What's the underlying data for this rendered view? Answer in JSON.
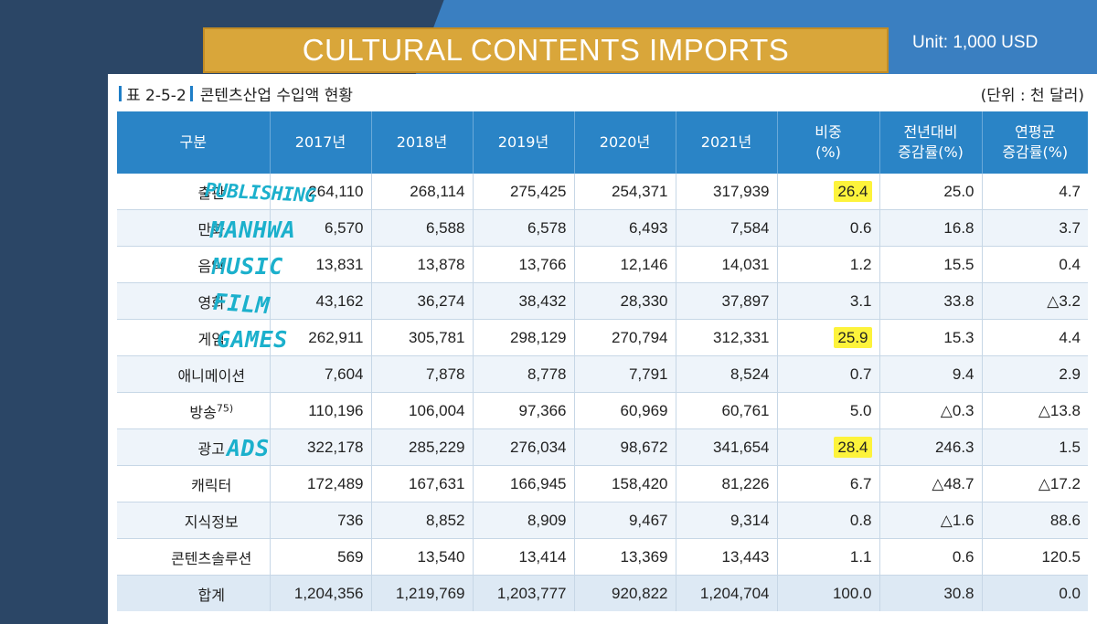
{
  "slide": {
    "title": "CULTURAL CONTENTS IMPORTS",
    "unit": "Unit: 1,000 USD"
  },
  "document": {
    "caption_number": "표 2-5-2",
    "caption_title": "콘텐츠산업 수입액 현황",
    "unit": "(단위 : 천 달러)"
  },
  "table": {
    "headers": [
      {
        "line1": "구분",
        "line2": ""
      },
      {
        "line1": "2017년",
        "line2": ""
      },
      {
        "line1": "2018년",
        "line2": ""
      },
      {
        "line1": "2019년",
        "line2": ""
      },
      {
        "line1": "2020년",
        "line2": ""
      },
      {
        "line1": "2021년",
        "line2": ""
      },
      {
        "line1": "비중",
        "line2": "(%)"
      },
      {
        "line1": "전년대비",
        "line2": "증감률(%)"
      },
      {
        "line1": "연평균",
        "line2": "증감률(%)"
      }
    ],
    "rows": [
      {
        "label": "출판",
        "footnote": "",
        "values": [
          "264,110",
          "268,114",
          "275,425",
          "254,371",
          "317,939",
          "26.4",
          "25.0",
          "4.7"
        ]
      },
      {
        "label": "만화",
        "footnote": "",
        "values": [
          "6,570",
          "6,588",
          "6,578",
          "6,493",
          "7,584",
          "0.6",
          "16.8",
          "3.7"
        ]
      },
      {
        "label": "음악",
        "footnote": "",
        "values": [
          "13,831",
          "13,878",
          "13,766",
          "12,146",
          "14,031",
          "1.2",
          "15.5",
          "0.4"
        ]
      },
      {
        "label": "영화",
        "footnote": "",
        "values": [
          "43,162",
          "36,274",
          "38,432",
          "28,330",
          "37,897",
          "3.1",
          "33.8",
          "△3.2"
        ]
      },
      {
        "label": "게임",
        "footnote": "",
        "values": [
          "262,911",
          "305,781",
          "298,129",
          "270,794",
          "312,331",
          "25.9",
          "15.3",
          "4.4"
        ]
      },
      {
        "label": "애니메이션",
        "footnote": "",
        "values": [
          "7,604",
          "7,878",
          "8,778",
          "7,791",
          "8,524",
          "0.7",
          "9.4",
          "2.9"
        ]
      },
      {
        "label": "방송",
        "footnote": "75)",
        "values": [
          "110,196",
          "106,004",
          "97,366",
          "60,969",
          "60,761",
          "5.0",
          "△0.3",
          "△13.8"
        ]
      },
      {
        "label": "광고",
        "footnote": "",
        "values": [
          "322,178",
          "285,229",
          "276,034",
          "98,672",
          "341,654",
          "28.4",
          "246.3",
          "1.5"
        ]
      },
      {
        "label": "캐릭터",
        "footnote": "",
        "values": [
          "172,489",
          "167,631",
          "166,945",
          "158,420",
          "81,226",
          "6.7",
          "△48.7",
          "△17.2"
        ]
      },
      {
        "label": "지식정보",
        "footnote": "",
        "values": [
          "736",
          "8,852",
          "8,909",
          "9,467",
          "9,314",
          "0.8",
          "△1.6",
          "88.6"
        ]
      },
      {
        "label": "콘텐츠솔루션",
        "footnote": "",
        "values": [
          "569",
          "13,540",
          "13,414",
          "13,369",
          "13,443",
          "1.1",
          "0.6",
          "120.5"
        ]
      },
      {
        "label": "합계",
        "footnote": "",
        "values": [
          "1,204,356",
          "1,219,769",
          "1,203,777",
          "920,822",
          "1,204,704",
          "100.0",
          "30.8",
          "0.0"
        ]
      }
    ]
  },
  "annotations": {
    "publishing": "PUBLISHING",
    "manhwa": "MANHWA",
    "music": "MUSIC",
    "film": "FILM",
    "games": "GAMES",
    "ads": "ADS",
    "highlight_color": "#fdf33b",
    "ink_color": "#1bb0cc"
  },
  "colors": {
    "background": "#2b4666",
    "accent_blue": "#3a7fc1",
    "title_gold": "#d9a63a",
    "header_blue": "#2a84c6"
  }
}
